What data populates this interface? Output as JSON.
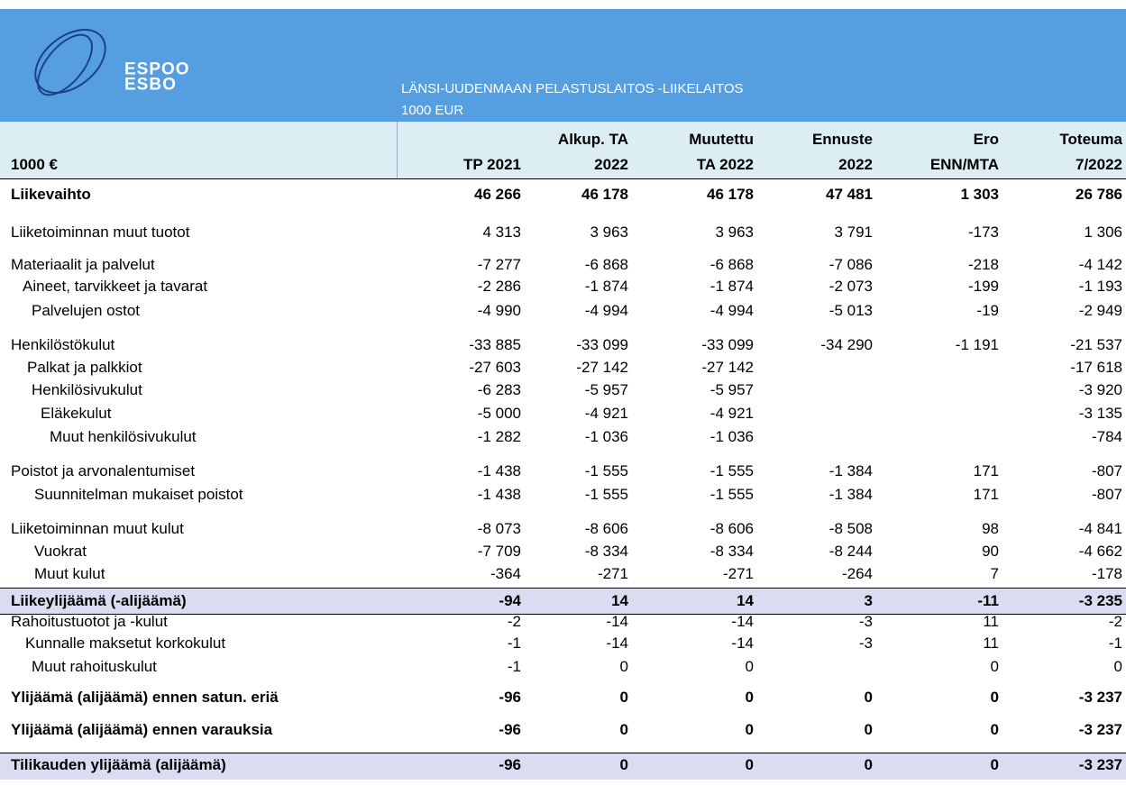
{
  "header": {
    "logo_text": [
      "ESPOO",
      "ESBO"
    ],
    "title": "LÄNSI-UUDENMAAN PELASTUSLAITOS -LIIKELAITOS",
    "unit": "1000 EUR"
  },
  "table": {
    "columns": [
      [
        "1000 €"
      ],
      [
        "TP 2021"
      ],
      [
        "Alkup. TA",
        "2022"
      ],
      [
        "Muutettu",
        "TA 2022"
      ],
      [
        "Ennuste",
        "2022"
      ],
      [
        "Ero",
        "ENN/MTA"
      ],
      [
        "Toteuma",
        "7/2022"
      ]
    ],
    "rows": [
      [
        "Liikevaihto",
        "46 266",
        "46 178",
        "46 178",
        "47 481",
        "1 303",
        "26 786"
      ],
      [
        "Liiketoiminnan muut tuotot",
        "4 313",
        "3 963",
        "3 963",
        "3 791",
        "-173",
        "1 306"
      ],
      [
        "Materiaalit ja palvelut",
        "-7 277",
        "-6 868",
        "-6 868",
        "-7 086",
        "-218",
        "-4 142"
      ],
      [
        "Aineet, tarvikkeet ja tavarat",
        "-2 286",
        "-1 874",
        "-1 874",
        "-2 073",
        "-199",
        "-1 193"
      ],
      [
        "Palvelujen ostot",
        "-4 990",
        "-4 994",
        "-4 994",
        "-5 013",
        "-19",
        "-2 949"
      ],
      [
        "Henkilöstökulut",
        "-33 885",
        "-33 099",
        "-33 099",
        "-34 290",
        "-1 191",
        "-21 537"
      ],
      [
        "Palkat ja palkkiot",
        "-27 603",
        "-27 142",
        "-27 142",
        null,
        null,
        "-17 618"
      ],
      [
        "Henkilösivukulut",
        "-6 283",
        "-5 957",
        "-5 957",
        null,
        null,
        "-3 920"
      ],
      [
        "Eläkekulut",
        "-5 000",
        "-4 921",
        "-4 921",
        null,
        null,
        "-3 135"
      ],
      [
        "Muut henkilösivukulut",
        "-1 282",
        "-1 036",
        "-1 036",
        null,
        null,
        "-784"
      ],
      [
        "Poistot ja arvonalentumiset",
        "-1 438",
        "-1 555",
        "-1 555",
        "-1 384",
        "171",
        "-807"
      ],
      [
        "Suunnitelman mukaiset poistot",
        "-1 438",
        "-1 555",
        "-1 555",
        "-1 384",
        "171",
        "-807"
      ],
      [
        "Liiketoiminnan muut kulut",
        "-8 073",
        "-8 606",
        "-8 606",
        "-8 508",
        "98",
        "-4 841"
      ],
      [
        "Vuokrat",
        "-7 709",
        "-8 334",
        "-8 334",
        "-8 244",
        "90",
        "-4 662"
      ],
      [
        "Muut kulut",
        "-364",
        "-271",
        "-271",
        "-264",
        "7",
        "-178"
      ],
      [
        "Liikeylijäämä (-alijäämä)",
        "-94",
        "14",
        "14",
        "3",
        "-11",
        "-3 235"
      ],
      [
        "Rahoitustuotot ja -kulut",
        "-2",
        "-14",
        "-14",
        "-3",
        "11",
        "-2"
      ],
      [
        "Kunnalle maksetut korkokulut",
        "-1",
        "-14",
        "-14",
        "-3",
        "11",
        "-1"
      ],
      [
        "Muut rahoituskulut",
        "-1",
        "0",
        "0",
        null,
        "0",
        "0"
      ],
      [
        "Ylijäämä (alijäämä) ennen satun. eriä",
        "-96",
        "0",
        "0",
        "0",
        "0",
        "-3 237"
      ],
      [
        "Ylijäämä (alijäämä) ennen varauksia",
        "-96",
        "0",
        "0",
        "0",
        "0",
        "-3 237"
      ],
      [
        "Tilikauden ylijäämä (alijäämä)",
        "-96",
        "0",
        "0",
        "0",
        "0",
        "-3 237"
      ]
    ]
  }
}
